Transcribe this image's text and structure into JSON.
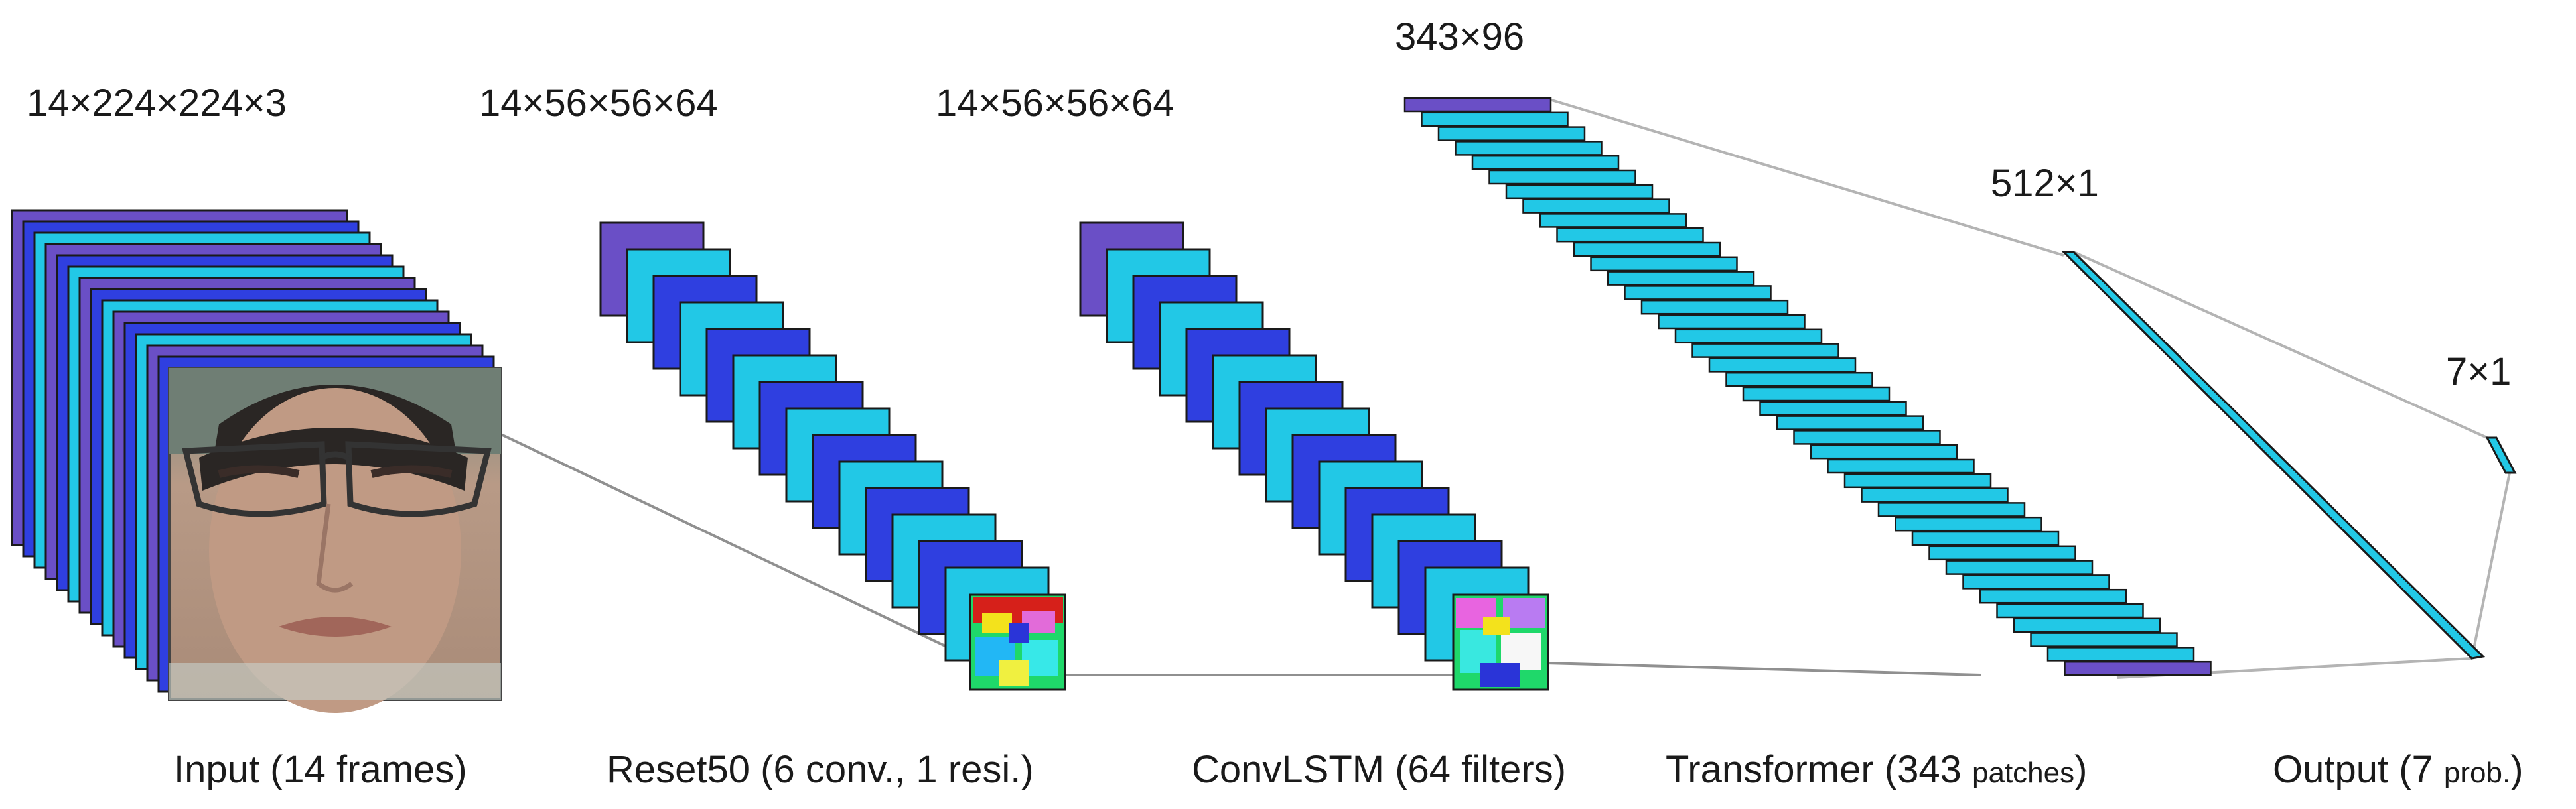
{
  "stages": [
    {
      "id": "input",
      "dims": "14×224×224×3",
      "caption": "Input (14 frames)",
      "caption_small": "",
      "caption_tail": ""
    },
    {
      "id": "resnet",
      "dims": "14×56×56×64",
      "caption": "Reset50 (6 conv., 1 resi.)",
      "caption_small": "",
      "caption_tail": ""
    },
    {
      "id": "convlstm",
      "dims": "14×56×56×64",
      "caption": "ConvLSTM (64 filters)",
      "caption_small": "",
      "caption_tail": ""
    },
    {
      "id": "transformer",
      "dims": "343×96",
      "caption": "Transformer (343 ",
      "caption_small": "patches",
      "caption_tail": ")"
    },
    {
      "id": "dense",
      "dims": "512×1",
      "caption": "",
      "caption_small": "",
      "caption_tail": ""
    },
    {
      "id": "output",
      "dims": "7×1",
      "caption": "Output (7 ",
      "caption_small": "prob.",
      "caption_tail": ")"
    }
  ],
  "colors": {
    "purple": "#6a4fc6",
    "blue": "#2f3fe0",
    "cyan": "#22c8e6",
    "edge": "#1a1a1a",
    "connector": "#b4b4b4"
  },
  "icons": {
    "input_frame": "face-photo",
    "feature_maps": "colored-feature-map"
  }
}
